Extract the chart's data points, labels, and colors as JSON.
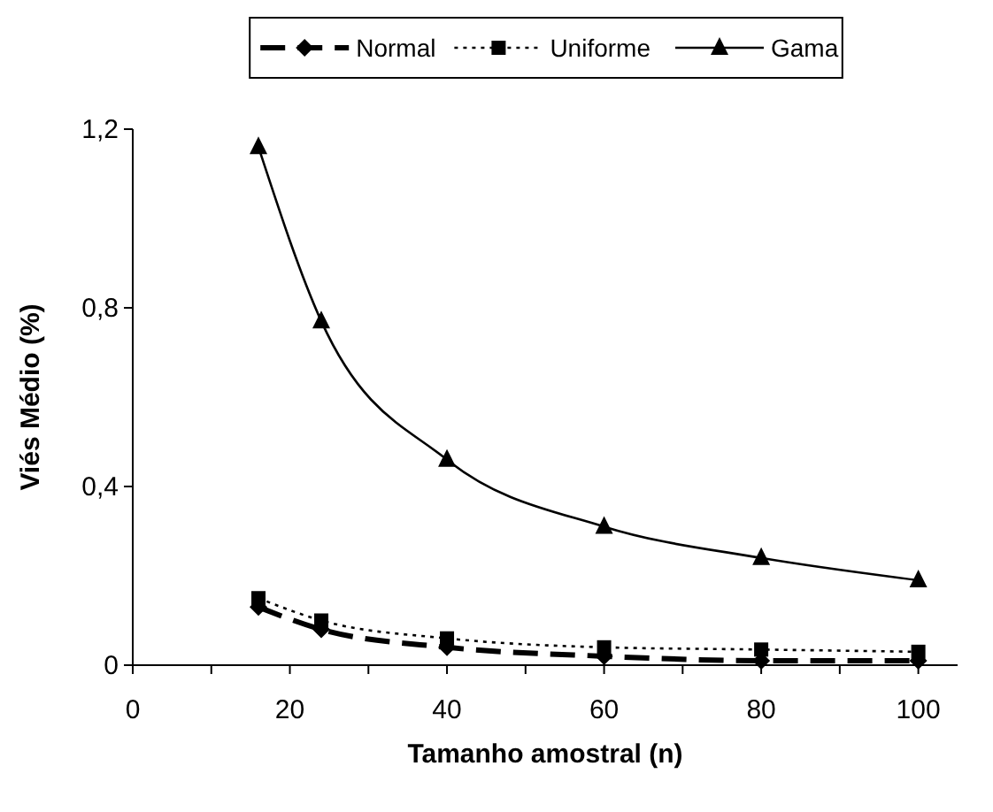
{
  "chart_data": {
    "type": "line",
    "xlabel": "Tamanho amostral (n)",
    "ylabel": "Viés Médio (%)",
    "x": [
      16,
      24,
      40,
      60,
      80,
      100
    ],
    "series": [
      {
        "name": "Normal",
        "color": "#000000",
        "values": [
          0.13,
          0.08,
          0.04,
          0.02,
          0.01,
          0.01
        ],
        "marker": "diamond",
        "line_style": "dashed"
      },
      {
        "name": "Uniforme",
        "color": "#000000",
        "values": [
          0.15,
          0.1,
          0.06,
          0.04,
          0.035,
          0.03
        ],
        "marker": "square",
        "line_style": "dotted"
      },
      {
        "name": "Gama",
        "color": "#000000",
        "values": [
          1.16,
          0.77,
          0.46,
          0.31,
          0.24,
          0.19
        ],
        "marker": "triangle",
        "line_style": "solid"
      }
    ],
    "xlim": [
      0,
      105
    ],
    "ylim": [
      0,
      1.2
    ],
    "xticks": [
      0,
      {
        "value": 10,
        "label": null
      },
      20,
      {
        "value": 30,
        "label": null
      },
      40,
      {
        "value": 50,
        "label": null
      },
      60,
      {
        "value": 70,
        "label": null
      },
      80,
      {
        "value": 90,
        "label": null
      },
      100
    ],
    "yticks": [
      0,
      {
        "value": 0.4,
        "label": "0,4"
      },
      {
        "value": 0.8,
        "label": "0,8"
      },
      {
        "value": 1.2,
        "label": "1,2"
      }
    ],
    "grid": false,
    "legend": "top"
  }
}
